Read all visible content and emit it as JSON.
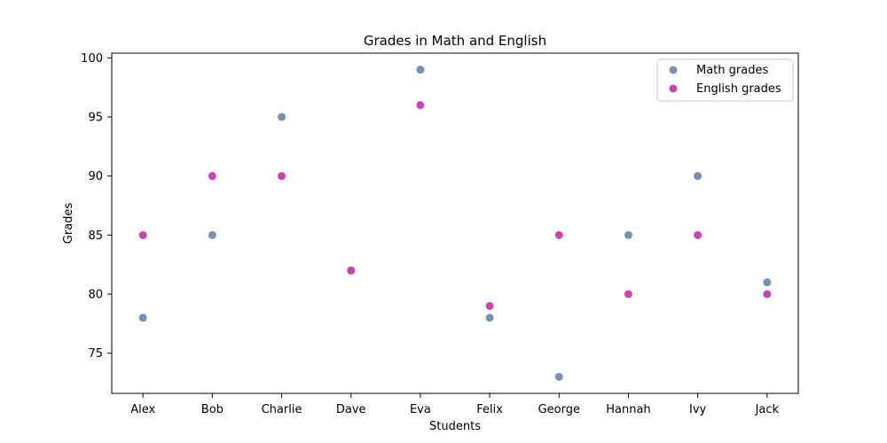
{
  "chart_data": {
    "type": "scatter",
    "title": "Grades in Math and English",
    "xlabel": "Students",
    "ylabel": "Grades",
    "categories": [
      "Alex",
      "Bob",
      "Charlie",
      "Dave",
      "Eva",
      "Felix",
      "George",
      "Hannah",
      "Ivy",
      "Jack"
    ],
    "ylim": [
      71.6,
      100.4
    ],
    "yticks": [
      75,
      80,
      85,
      90,
      95,
      100
    ],
    "grid": false,
    "legend_position": "top-right",
    "series": [
      {
        "name": "Math grades",
        "color": "#7793b0",
        "values": [
          78,
          85,
          95,
          82,
          99,
          78,
          73,
          85,
          90,
          81
        ]
      },
      {
        "name": "English grades",
        "color": "#cc44b0",
        "values": [
          85,
          90,
          90,
          82,
          96,
          79,
          85,
          80,
          85,
          80
        ]
      }
    ]
  }
}
